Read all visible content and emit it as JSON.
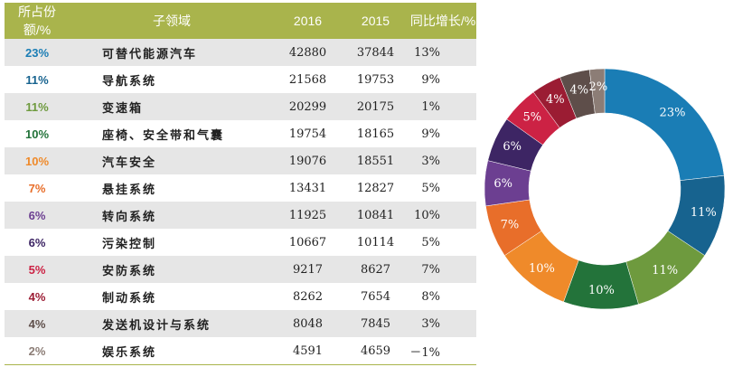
{
  "table": {
    "headers": [
      "所占份额/%",
      "子领域",
      "2016",
      "2015",
      "同比增长/%"
    ],
    "rows": [
      {
        "share": "23%",
        "name": "可替代能源汽车",
        "y2016": "42880",
        "y2015": "37844",
        "growth": "13%",
        "color": "#1a7db5"
      },
      {
        "share": "11%",
        "name": "导航系统",
        "y2016": "21568",
        "y2015": "19753",
        "growth": "9%",
        "color": "#17638f"
      },
      {
        "share": "11%",
        "name": "变速箱",
        "y2016": "20299",
        "y2015": "20175",
        "growth": "1%",
        "color": "#6e9a3e"
      },
      {
        "share": "10%",
        "name": "座椅、安全带和气囊",
        "y2016": "19754",
        "y2015": "18165",
        "growth": "9%",
        "color": "#23733a"
      },
      {
        "share": "10%",
        "name": "汽车安全",
        "y2016": "19076",
        "y2015": "18551",
        "growth": "3%",
        "color": "#ef8a2a"
      },
      {
        "share": "7%",
        "name": "悬挂系统",
        "y2016": "13431",
        "y2015": "12827",
        "growth": "5%",
        "color": "#e86e2a"
      },
      {
        "share": "6%",
        "name": "转向系统",
        "y2016": "11925",
        "y2015": "10841",
        "growth": "10%",
        "color": "#6c3f91"
      },
      {
        "share": "6%",
        "name": "污染控制",
        "y2016": "10667",
        "y2015": "10114",
        "growth": "5%",
        "color": "#3d2564"
      },
      {
        "share": "5%",
        "name": "安防系统",
        "y2016": "9217",
        "y2015": "8627",
        "growth": "7%",
        "color": "#cc2244"
      },
      {
        "share": "4%",
        "name": "制动系统",
        "y2016": "8262",
        "y2015": "7654",
        "growth": "8%",
        "color": "#9b1c33"
      },
      {
        "share": "4%",
        "name": "发送机设计与系统",
        "y2016": "8048",
        "y2015": "7845",
        "growth": "3%",
        "color": "#5e4e4a"
      },
      {
        "share": "2%",
        "name": "娱乐系统",
        "y2016": "4591",
        "y2015": "4659",
        "growth": "－1%",
        "color": "#8c7d76"
      }
    ]
  },
  "chart_data": {
    "type": "pie",
    "donut": true,
    "categories": [
      "可替代能源汽车",
      "导航系统",
      "变速箱",
      "座椅、安全带和气囊",
      "汽车安全",
      "悬挂系统",
      "转向系统",
      "污染控制",
      "安防系统",
      "制动系统",
      "发送机设计与系统",
      "娱乐系统"
    ],
    "values": [
      23,
      11,
      11,
      10,
      10,
      7,
      6,
      6,
      5,
      4,
      4,
      2
    ],
    "labels": [
      "23%",
      "11%",
      "11%",
      "10%",
      "10%",
      "7%",
      "6%",
      "6%",
      "5%",
      "4%",
      "4%",
      "2%"
    ],
    "colors": [
      "#1a7db5",
      "#17638f",
      "#6e9a3e",
      "#23733a",
      "#ef8a2a",
      "#e86e2a",
      "#6c3f91",
      "#3d2564",
      "#cc2244",
      "#9b1c33",
      "#5e4e4a",
      "#8c7d76"
    ]
  }
}
